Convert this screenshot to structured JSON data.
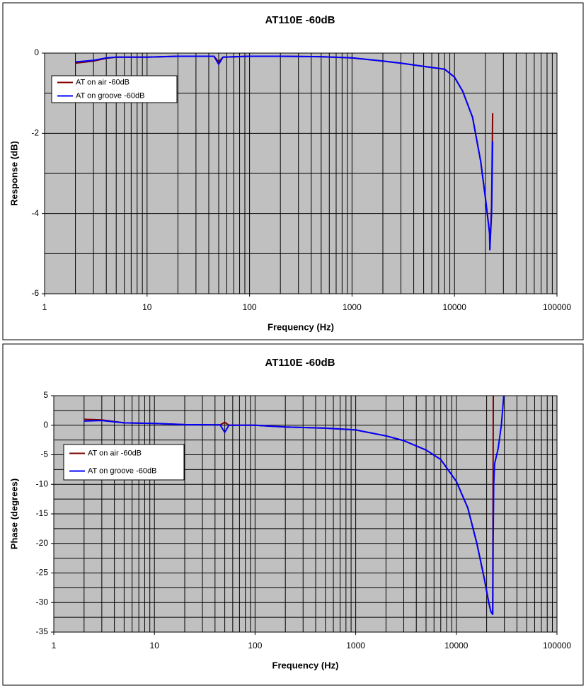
{
  "chart_data": [
    {
      "type": "line",
      "title": "AT110E -60dB",
      "x_label": "Frequency (Hz)",
      "y_label": "Response (dB)",
      "x_scale": "log",
      "xlim": [
        1,
        100000
      ],
      "xticks": [
        1,
        10,
        100,
        1000,
        10000,
        100000
      ],
      "ylim": [
        -6,
        0
      ],
      "yticks": [
        0,
        -2,
        -4,
        -6
      ],
      "y_minor_ticks": [
        -1,
        -3,
        -5
      ],
      "grid": true,
      "minor_grid": true,
      "plot_background": "#c0c0c0",
      "legend": "upper left",
      "series": [
        {
          "name": "AT on air -60dB",
          "color": "#800000",
          "x": [
            2,
            3,
            4,
            5,
            10,
            20,
            45,
            50,
            55,
            100,
            200,
            500,
            1000,
            2000,
            3000,
            5000,
            8000,
            10000,
            12000,
            15000,
            18000,
            20000,
            22000,
            22100,
            23000,
            23550
          ],
          "values": [
            -0.25,
            -0.2,
            -0.13,
            -0.1,
            -0.1,
            -0.08,
            -0.08,
            -0.22,
            -0.1,
            -0.08,
            -0.08,
            -0.09,
            -0.12,
            -0.2,
            -0.25,
            -0.33,
            -0.4,
            -0.6,
            -0.95,
            -1.6,
            -2.7,
            -3.6,
            -4.5,
            -4.9,
            -3.8,
            -1.5
          ]
        },
        {
          "name": "AT on groove -60dB",
          "color": "#0000ff",
          "x": [
            2,
            3,
            4,
            5,
            10,
            20,
            45,
            50,
            55,
            100,
            200,
            500,
            1000,
            2000,
            3000,
            5000,
            8000,
            10000,
            12000,
            15000,
            18000,
            20000,
            22000,
            22100,
            23000,
            23550
          ],
          "values": [
            -0.22,
            -0.18,
            -0.12,
            -0.1,
            -0.1,
            -0.08,
            -0.08,
            -0.28,
            -0.1,
            -0.08,
            -0.08,
            -0.09,
            -0.12,
            -0.2,
            -0.25,
            -0.33,
            -0.4,
            -0.6,
            -0.95,
            -1.6,
            -2.7,
            -3.6,
            -4.5,
            -4.9,
            -4.0,
            -2.2
          ]
        }
      ]
    },
    {
      "type": "line",
      "title": "AT110E -60dB",
      "x_label": "Frequency (Hz)",
      "y_label": "Phase (degrees)",
      "x_scale": "log",
      "xlim": [
        1,
        100000
      ],
      "xticks": [
        1,
        10,
        100,
        1000,
        10000,
        100000
      ],
      "ylim": [
        -35,
        5
      ],
      "yticks": [
        5,
        0,
        -5,
        -10,
        -15,
        -20,
        -25,
        -30,
        -35
      ],
      "y_minor_ticks": [
        2.5,
        -2.5,
        -7.5,
        -12.5,
        -17.5,
        -22.5,
        -27.5,
        -32.5
      ],
      "grid": true,
      "minor_grid": true,
      "plot_background": "#c0c0c0",
      "legend": "upper left",
      "series": [
        {
          "name": "AT on air -60dB",
          "color": "#800000",
          "x": [
            2,
            3,
            5,
            10,
            20,
            45,
            50,
            55,
            100,
            200,
            500,
            1000,
            2000,
            3000,
            5000,
            7000,
            10000,
            13000,
            16000,
            19000,
            21000,
            22000,
            23000,
            23300
          ],
          "values": [
            1.0,
            0.9,
            0.4,
            0.3,
            0.1,
            0.05,
            0.5,
            0,
            0,
            -0.3,
            -0.5,
            -0.8,
            -1.8,
            -2.6,
            -4.2,
            -5.8,
            -9.5,
            -14,
            -20,
            -26,
            -30,
            -31.5,
            -32,
            5
          ]
        },
        {
          "name": "AT on groove -60dB",
          "color": "#0000ff",
          "x": [
            2,
            3,
            5,
            10,
            20,
            45,
            50,
            55,
            100,
            200,
            500,
            1000,
            2000,
            3000,
            5000,
            7000,
            10000,
            13000,
            16000,
            19000,
            21000,
            22000,
            23000,
            23200,
            23500,
            24000,
            26000,
            28000,
            29600
          ],
          "values": [
            0.7,
            0.8,
            0.4,
            0.3,
            0.1,
            0.05,
            -1.2,
            0,
            0,
            -0.3,
            -0.5,
            -0.8,
            -1.8,
            -2.6,
            -4.2,
            -5.8,
            -9.5,
            -14,
            -20,
            -26,
            -30,
            -31.5,
            -32,
            -20,
            -10,
            -6.5,
            -4,
            0,
            5
          ]
        }
      ]
    }
  ]
}
